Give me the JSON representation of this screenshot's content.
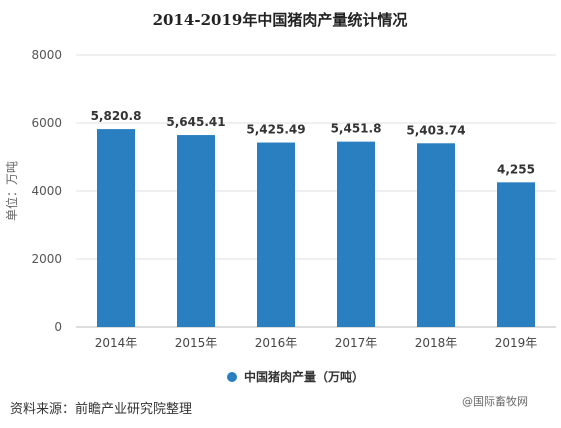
{
  "chart_data": {
    "type": "bar",
    "title": "2014-2019年中国猪肉产量统计情况",
    "ylabel": "单位：万吨",
    "xlabel": "",
    "categories": [
      "2014年",
      "2015年",
      "2016年",
      "2017年",
      "2018年",
      "2019年"
    ],
    "series": [
      {
        "name": "中国猪肉产量（万吨）",
        "values": [
          5820.8,
          5645.41,
          5425.49,
          5451.8,
          5403.74,
          4255
        ]
      }
    ],
    "value_labels": [
      "5,820.8",
      "5,645.41",
      "5,425.49",
      "5,451.8",
      "5,403.74",
      "4,255"
    ],
    "ylim": [
      0,
      8000
    ],
    "yticks": [
      0,
      2000,
      4000,
      6000,
      8000
    ],
    "grid": true,
    "legend_position": "bottom",
    "bar_color": "#2A7FC0"
  },
  "footer": {
    "source": "资料来源：前瞻产业研究院整理",
    "watermark": "@国际畜牧网"
  }
}
